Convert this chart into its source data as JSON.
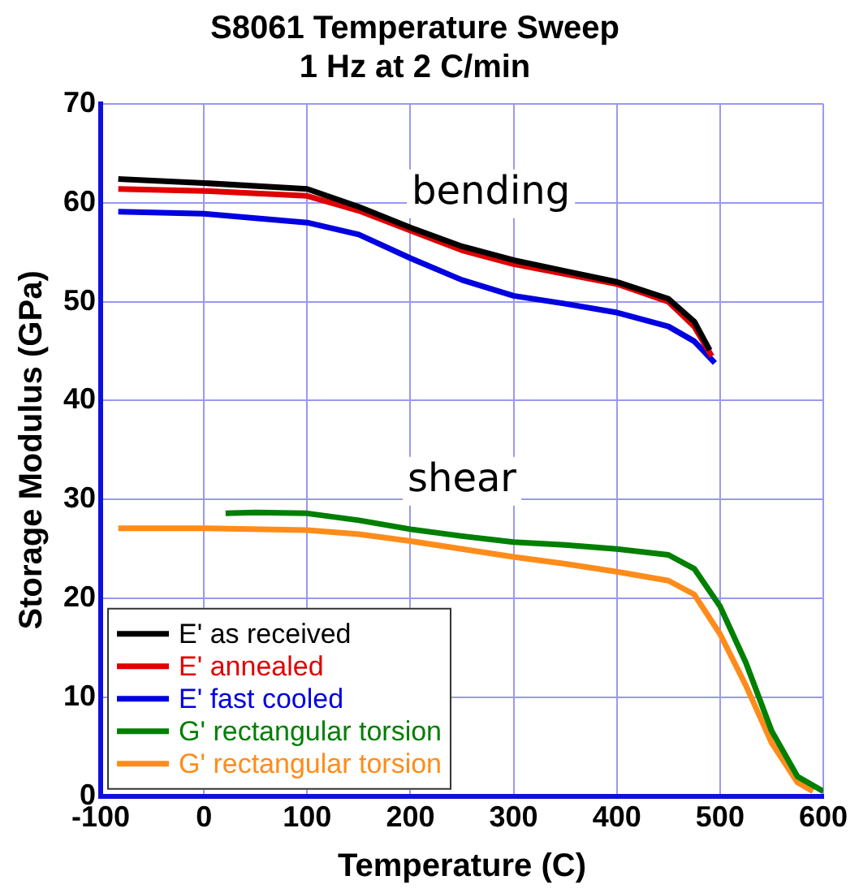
{
  "chart_data": {
    "type": "line",
    "title": "S8061 Temperature Sweep",
    "subtitle": "1 Hz at 2 C/min",
    "xlabel": "Temperature (C)",
    "ylabel": "Storage Modulus (GPa)",
    "xlim": [
      -100,
      600
    ],
    "xticks": [
      -100,
      0,
      100,
      200,
      300,
      400,
      500,
      600
    ],
    "ylim": [
      0,
      70
    ],
    "yticks": [
      0,
      10,
      20,
      30,
      40,
      50,
      60,
      70
    ],
    "grid": true,
    "legend": "bottom left",
    "marker": "none",
    "line_style": "solid",
    "annotations": [
      "bending",
      "shear"
    ],
    "series": [
      {
        "name": "E' as received",
        "color": "#000000",
        "x": [
          -83,
          0,
          100,
          150,
          200,
          250,
          300,
          350,
          400,
          450,
          475,
          490
        ],
        "values": [
          62.4,
          62.0,
          61.4,
          59.6,
          57.5,
          55.6,
          54.2,
          53.1,
          52.0,
          50.3,
          48.0,
          45.1
        ]
      },
      {
        "name": "E' annealed",
        "color": "#e00000",
        "x": [
          -83,
          0,
          100,
          150,
          200,
          250,
          300,
          350,
          400,
          450,
          475,
          492
        ],
        "values": [
          61.4,
          61.2,
          60.7,
          59.2,
          57.2,
          55.2,
          53.8,
          52.8,
          51.8,
          50.0,
          47.5,
          44.5
        ]
      },
      {
        "name": "E' fast cooled",
        "color": "#0000e0",
        "x": [
          -83,
          0,
          100,
          150,
          200,
          250,
          300,
          350,
          400,
          450,
          475,
          495
        ],
        "values": [
          59.1,
          58.9,
          58.0,
          56.8,
          54.4,
          52.2,
          50.6,
          49.8,
          48.9,
          47.5,
          46.0,
          43.8
        ]
      },
      {
        "name": "G' rectangular torsion",
        "color": "#007f00",
        "x": [
          21,
          50,
          100,
          150,
          200,
          250,
          300,
          350,
          400,
          450,
          475,
          500,
          525,
          550,
          575,
          600
        ],
        "values": [
          28.6,
          28.7,
          28.6,
          27.9,
          27.0,
          26.3,
          25.7,
          25.4,
          25.0,
          24.4,
          23.0,
          19.2,
          13.5,
          6.6,
          2.0,
          0.5
        ]
      },
      {
        "name": "G' rectangular torsion",
        "color": "#ff8c1a",
        "x": [
          -83,
          0,
          100,
          150,
          200,
          250,
          300,
          350,
          400,
          450,
          475,
          500,
          525,
          550,
          575,
          590
        ],
        "values": [
          27.1,
          27.1,
          26.9,
          26.5,
          25.8,
          25.0,
          24.2,
          23.5,
          22.7,
          21.8,
          20.4,
          16.4,
          11.2,
          5.4,
          1.4,
          0.5
        ]
      }
    ]
  }
}
